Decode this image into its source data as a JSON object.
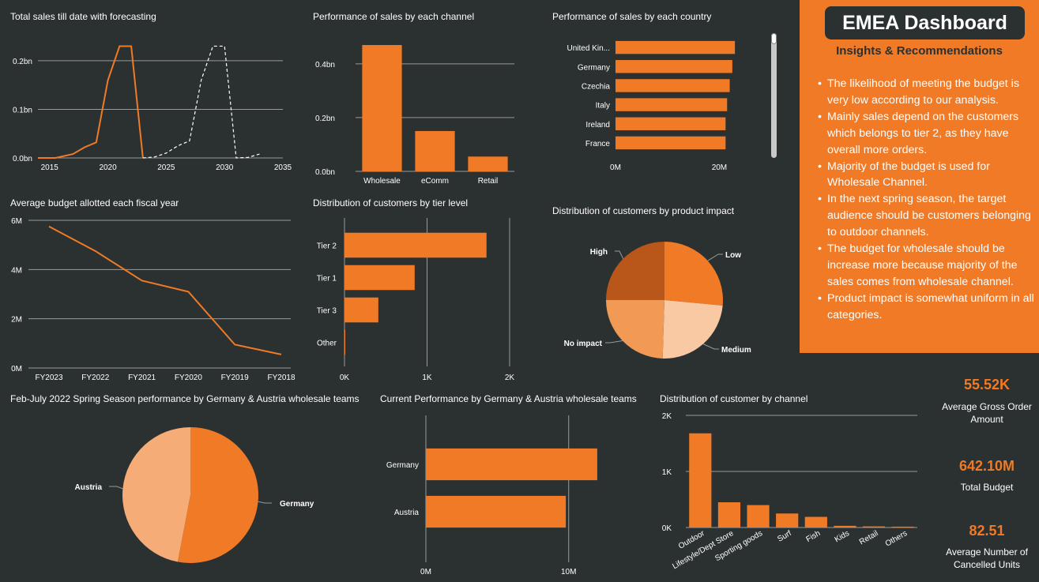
{
  "theme": {
    "background": "#2b3030",
    "accent": "#f07a25",
    "panel": "#f07a25",
    "grid": "#9a9a9a"
  },
  "insights": {
    "title": "EMEA Dashboard",
    "subtitle": "Insights & Recommendations",
    "bullets": [
      "The likelihood of meeting the budget is very low according to our analysis.",
      "Mainly sales depend on the customers which belongs to tier 2, as they have overall more orders.",
      "Majority of the budget is used for Wholesale Channel.",
      "In the next spring season, the target audience should be customers belonging to outdoor channels.",
      "The budget for wholesale should be increase more because majority of the sales comes from wholesale channel.",
      "Product impact is somewhat uniform in all categories."
    ]
  },
  "kpis": [
    {
      "value": "55.52K",
      "label": "Average Gross Order Amount"
    },
    {
      "value": "642.10M",
      "label": "Total Budget"
    },
    {
      "value": "82.51",
      "label": "Average Number of Cancelled Units"
    }
  ],
  "chart_data": [
    {
      "id": "sales_forecast",
      "type": "line",
      "title": "Total sales till date with forecasting",
      "xlim": [
        2014,
        2035
      ],
      "ylim": [
        0,
        0.26
      ],
      "xticks": [
        2015,
        2020,
        2025,
        2030,
        2035
      ],
      "yticks": [
        0,
        0.1,
        0.2
      ],
      "ytick_labels": [
        "0.0bn",
        "0.1bn",
        "0.2bn"
      ],
      "series": [
        {
          "style": "actual",
          "x": [
            2014,
            2015.5,
            2017,
            2018,
            2019,
            2020,
            2021,
            2022,
            2023
          ],
          "y": [
            0,
            0.0,
            0.008,
            0.022,
            0.032,
            0.16,
            0.23,
            0.23,
            0.0
          ]
        },
        {
          "style": "forecast",
          "x": [
            2023,
            2024,
            2025,
            2026,
            2027,
            2028,
            2029,
            2030,
            2031,
            2032,
            2033
          ],
          "y": [
            0.0,
            0.002,
            0.01,
            0.025,
            0.035,
            0.16,
            0.23,
            0.23,
            0.0,
            0.001,
            0.008
          ]
        }
      ]
    },
    {
      "id": "sales_by_channel",
      "type": "bar",
      "title": "Performance of sales by each channel",
      "categories": [
        "Wholesale",
        "eComm",
        "Retail"
      ],
      "values": [
        0.47,
        0.15,
        0.055
      ],
      "ylim": [
        0,
        0.52
      ],
      "yticks": [
        0,
        0.2,
        0.4
      ],
      "ytick_labels": [
        "0.0bn",
        "0.2bn",
        "0.4bn"
      ]
    },
    {
      "id": "sales_by_country",
      "type": "bar",
      "orientation": "horizontal",
      "title": "Performance of sales by each country",
      "categories": [
        "United Kin...",
        "Germany",
        "Czechia",
        "Italy",
        "Ireland",
        "France"
      ],
      "values": [
        23,
        22.5,
        22,
        21.5,
        21.2,
        21.2
      ],
      "xlim": [
        0,
        28
      ],
      "xticks": [
        0,
        20
      ],
      "xtick_labels": [
        "0M",
        "20M"
      ]
    },
    {
      "id": "budget_by_year",
      "type": "line",
      "title": "Average budget allotted each fiscal year",
      "categories": [
        "FY2023",
        "FY2022",
        "FY2021",
        "FY2020",
        "FY2019",
        "FY2018"
      ],
      "values": [
        5.75,
        4.75,
        3.55,
        3.1,
        0.95,
        0.55
      ],
      "ylim": [
        0,
        6
      ],
      "yticks": [
        0,
        2,
        4,
        6
      ],
      "ytick_labels": [
        "0M",
        "2M",
        "4M",
        "6M"
      ]
    },
    {
      "id": "customers_by_tier",
      "type": "bar",
      "orientation": "horizontal",
      "title": "Distribution of customers by tier level",
      "categories": [
        "Tier 2",
        "Tier 1",
        "Tier 3",
        "Other"
      ],
      "values": [
        1720,
        850,
        410,
        5
      ],
      "xlim": [
        0,
        2000
      ],
      "xticks": [
        0,
        1000,
        2000
      ],
      "xtick_labels": [
        "0K",
        "1K",
        "2K"
      ]
    },
    {
      "id": "customers_by_impact",
      "type": "pie",
      "title": "Distribution of customers by product impact",
      "labels": [
        "Low",
        "Medium",
        "No impact",
        "High"
      ],
      "values": [
        26.5,
        24,
        24.5,
        25
      ],
      "colors": [
        "#f07a25",
        "#f9c9a3",
        "#f09a55",
        "#b9561a"
      ]
    },
    {
      "id": "spring_season",
      "type": "pie",
      "title": "Feb-July 2022 Spring Season performance by Germany & Austria wholesale teams",
      "labels": [
        "Germany",
        "Austria"
      ],
      "values": [
        53,
        47
      ],
      "colors": [
        "#f07a25",
        "#f5ac77"
      ]
    },
    {
      "id": "current_performance",
      "type": "bar",
      "orientation": "horizontal",
      "title": "Current Performance by Germany & Austria wholesale teams",
      "categories": [
        "Germany",
        "Austria"
      ],
      "values": [
        12,
        9.8
      ],
      "xlim": [
        0,
        13.5
      ],
      "xticks": [
        0,
        10
      ],
      "xtick_labels": [
        "0M",
        "10M"
      ]
    },
    {
      "id": "customers_by_channel",
      "type": "bar",
      "title": "Distribution of customer by channel",
      "categories": [
        "Outdoor",
        "Lifestyle/Dept Store",
        "Sporting goods",
        "Surf",
        "Fish",
        "Kids",
        "Retail",
        "Others"
      ],
      "values": [
        1680,
        450,
        400,
        250,
        190,
        30,
        20,
        15
      ],
      "ylim": [
        0,
        2000
      ],
      "yticks": [
        0,
        1000,
        2000
      ],
      "ytick_labels": [
        "0K",
        "1K",
        "2K"
      ]
    }
  ]
}
